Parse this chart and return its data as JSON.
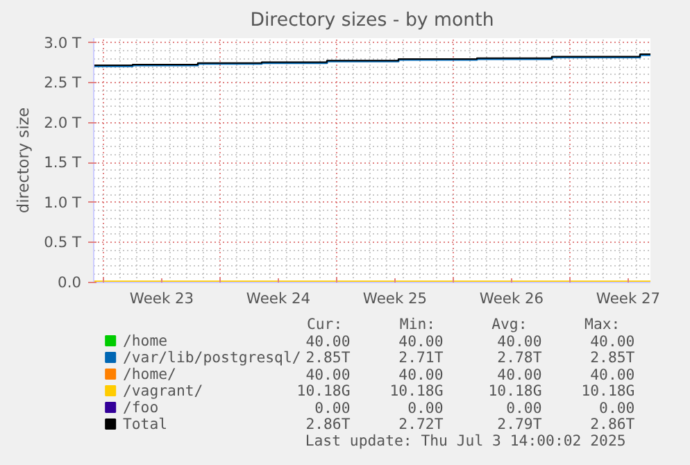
{
  "chart_data": {
    "type": "step",
    "title": "Directory sizes - by month",
    "ylabel": "directory size",
    "x": [
      "2025-06-01T10:00",
      "2025-06-03T18:00",
      "2025-06-07T16:00",
      "2025-06-11T12:00",
      "2025-06-15T10:00",
      "2025-06-19T17:00",
      "2025-06-24T10:00",
      "2025-06-28T22:00",
      "2025-07-04T05:00",
      "2025-07-04T20:00"
    ],
    "xlim": [
      "2025-06-01T10:00",
      "2025-07-04T20:00"
    ],
    "xticks": [
      {
        "value": "2025-06-02",
        "label": null
      },
      {
        "value": "2025-06-05T12:00",
        "label": "Week 23"
      },
      {
        "value": "2025-06-09",
        "label": null
      },
      {
        "value": "2025-06-12T12:00",
        "label": "Week 24"
      },
      {
        "value": "2025-06-16",
        "label": null
      },
      {
        "value": "2025-06-19T12:00",
        "label": "Week 25"
      },
      {
        "value": "2025-06-23",
        "label": null
      },
      {
        "value": "2025-06-26T12:00",
        "label": "Week 26"
      },
      {
        "value": "2025-06-30",
        "label": null
      },
      {
        "value": "2025-07-03T12:00",
        "label": "Week 27"
      }
    ],
    "ylim": [
      0,
      3.06
    ],
    "yticks": [
      {
        "value": 0,
        "label": "0.0"
      },
      {
        "value": 0.5,
        "label": "0.5 T"
      },
      {
        "value": 1.0,
        "label": "1.0 T"
      },
      {
        "value": 1.5,
        "label": "1.5 T"
      },
      {
        "value": 2.0,
        "label": "2.0 T"
      },
      {
        "value": 2.5,
        "label": "2.5 T"
      },
      {
        "value": 3.0,
        "label": "3.0 T"
      }
    ],
    "grid": true,
    "legend": "bottom",
    "marker": "none",
    "line_style": "solid",
    "series": [
      {
        "name": "/home",
        "color": "#00cc00",
        "values": [
          null,
          null,
          null,
          null,
          null,
          null,
          null,
          null,
          null,
          null
        ]
      },
      {
        "name": "/var/lib/postgresql/",
        "color": "#0066b3",
        "values": [
          2.71,
          2.72,
          2.74,
          2.75,
          2.77,
          2.79,
          2.8,
          2.82,
          2.85,
          2.85
        ]
      },
      {
        "name": "/home/",
        "color": "#ff8000",
        "values": [
          null,
          null,
          null,
          null,
          null,
          null,
          null,
          null,
          null,
          null
        ]
      },
      {
        "name": "/vagrant/",
        "color": "#ffcc00",
        "values": [
          0.01,
          0.01,
          0.01,
          0.01,
          0.01,
          0.01,
          0.01,
          0.01,
          0.01,
          0.01
        ]
      },
      {
        "name": "/foo",
        "color": "#330099",
        "values": [
          null,
          null,
          null,
          null,
          null,
          null,
          null,
          null,
          null,
          null
        ]
      },
      {
        "name": "Total",
        "color": "#000000",
        "values": [
          2.72,
          2.73,
          2.75,
          2.76,
          2.78,
          2.8,
          2.81,
          2.83,
          2.86,
          2.86
        ]
      }
    ],
    "annotations": [
      "Cur:",
      "Min:",
      "Avg:",
      "Max:",
      "40.00",
      "40.00",
      "40.00",
      "40.00",
      "2.85T",
      "2.71T",
      "2.78T",
      "2.85T",
      "40.00",
      "40.00",
      "40.00",
      "40.00",
      "10.18G",
      "10.18G",
      "10.18G",
      "10.18G",
      "0.00",
      "0.00",
      "0.00",
      "0.00",
      "2.86T",
      "2.72T",
      "2.79T",
      "2.86T",
      "Last update: Thu Jul  3 14:00:02 2025"
    ]
  }
}
